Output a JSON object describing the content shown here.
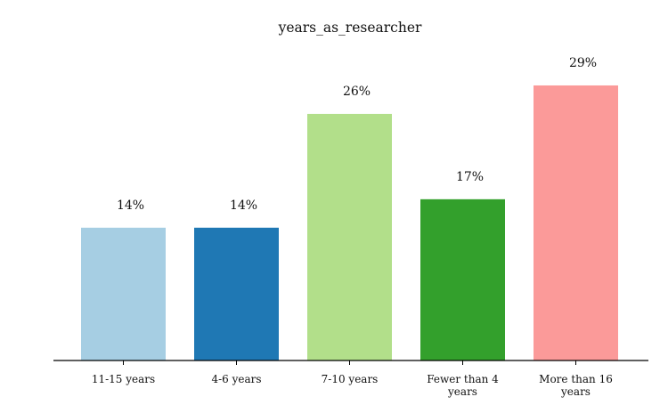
{
  "chart_data": {
    "type": "bar",
    "title": "years_as_researcher",
    "xlabel": "",
    "ylabel": "",
    "categories": [
      "11-15 years",
      "4-6 years",
      "7-10 years",
      "Fewer than 4 years",
      "More than 16 years"
    ],
    "values": [
      14,
      14,
      26,
      17,
      29
    ],
    "data_labels": [
      "14%",
      "14%",
      "26%",
      "17%",
      "29%"
    ],
    "value_unit": "%",
    "colors": [
      "#a6cee3",
      "#1f78b4",
      "#b2df8a",
      "#33a02c",
      "#fb9a99"
    ],
    "ylim": [
      0,
      32
    ],
    "grid": false,
    "legend": "none",
    "axis_color": "#000000"
  }
}
